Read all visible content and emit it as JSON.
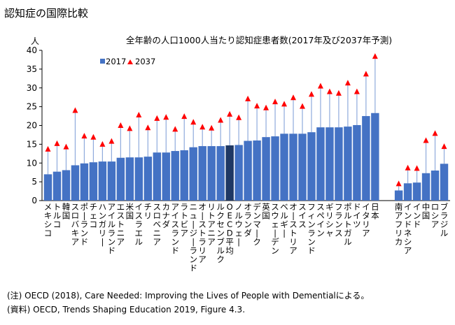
{
  "page_title": "認知症の国際比較",
  "notes": [
    "(注) OECD (2018), Care Needed: Improving the Lives of People with Dementialによる。",
    "(資料) OECD, Trends Shaping Education 2019, Figure 4.3."
  ],
  "chart_data": {
    "type": "bar",
    "title": "全年齢の人口1000人当たり認知症患者数(2017年及び2037年予測)",
    "ylabel": "人",
    "xlabel": "",
    "ylim": [
      0,
      40
    ],
    "yticks": [
      0,
      5,
      10,
      15,
      20,
      25,
      30,
      35,
      40
    ],
    "grid": false,
    "legend": {
      "position": "top-left",
      "entries": [
        "2017",
        "2037"
      ]
    },
    "colors": {
      "bar": "#4472c4",
      "highlight_bar": "#1f3864",
      "marker": "#ff0000",
      "stem": "#8faadc"
    },
    "highlight_category": "OECD平均",
    "categories": [
      "メキシコ",
      "トルコ",
      "韓国",
      "スロバキア",
      "ポーランド",
      "チェコ",
      "ハンガリー",
      "アイルランド",
      "エストニア",
      "米国",
      "イスラエル",
      "チリ",
      "スロベニア",
      "カナダ",
      "アイスランド",
      "ラトビア",
      "ニュージーランド",
      "オーストラリア",
      "リトアニア",
      "ルクセンブルク",
      "OECD平均",
      "ノルウェー",
      "オランダ",
      "デンマーク",
      "英国",
      "スウェーデン",
      "ベルギー",
      "オーストリア",
      "スイス",
      "フィンランド",
      "スペイン",
      "ギリシャ",
      "フランス",
      "ポルトガル",
      "ドイツ",
      "イタリア",
      "日本",
      "南アフリカ",
      "インドネシア",
      "インド",
      "中国",
      "ロシア",
      "ブラジル"
    ],
    "labels": [
      "メキシコ",
      "トルコ",
      "韓国",
      "スロバキア",
      "ポーランド",
      "チェコ",
      "ハンガリー",
      "アイルランド",
      "エストニア",
      "米国",
      "イスラエル",
      "チリ",
      "スロベニア",
      "カナダ",
      "アイスランド",
      "ラトビア",
      "ニュージーランド",
      "オーストラリア",
      "リトアニア",
      "ルクセンブルク",
      "OECD平均",
      "ノルウェー",
      "オランダ",
      "デンマーク",
      "英国",
      "スウェーデン",
      "ベルギー",
      "オーストリア",
      "スイス",
      "フィンランド",
      "スペイン",
      "ギリシャ",
      "フランス",
      "ポルトガル",
      "ドイツ",
      "イタリア",
      "日本",
      "南アフリカ",
      "インドネシア",
      "インド",
      "中国",
      "ロシア",
      "ブラジル"
    ],
    "group_break_after": 36,
    "series": [
      {
        "name": "2017",
        "values": [
          7.0,
          7.7,
          8.1,
          9.4,
          9.9,
          10.2,
          10.4,
          10.4,
          11.4,
          11.5,
          11.5,
          11.7,
          12.8,
          12.8,
          13.2,
          13.4,
          14.2,
          14.5,
          14.5,
          14.5,
          14.7,
          14.8,
          15.9,
          16.0,
          16.9,
          17.1,
          17.8,
          17.8,
          17.8,
          18.2,
          19.5,
          19.5,
          19.5,
          19.7,
          20.1,
          22.5,
          23.3,
          2.7,
          4.6,
          4.8,
          7.3,
          8.0,
          9.8
        ]
      },
      {
        "name": "2037",
        "values": [
          13.6,
          15.1,
          14.2,
          23.9,
          17.1,
          16.8,
          14.9,
          15.7,
          19.9,
          19.1,
          22.7,
          19.3,
          21.8,
          22.1,
          18.9,
          22.3,
          20.8,
          19.5,
          19.2,
          21.3,
          22.9,
          22.0,
          27.0,
          25.1,
          24.6,
          26.2,
          25.6,
          27.3,
          25.0,
          28.2,
          30.4,
          28.9,
          28.5,
          31.2,
          28.9,
          33.6,
          38.3,
          4.4,
          8.6,
          8.5,
          15.9,
          17.8,
          14.3
        ]
      }
    ]
  }
}
